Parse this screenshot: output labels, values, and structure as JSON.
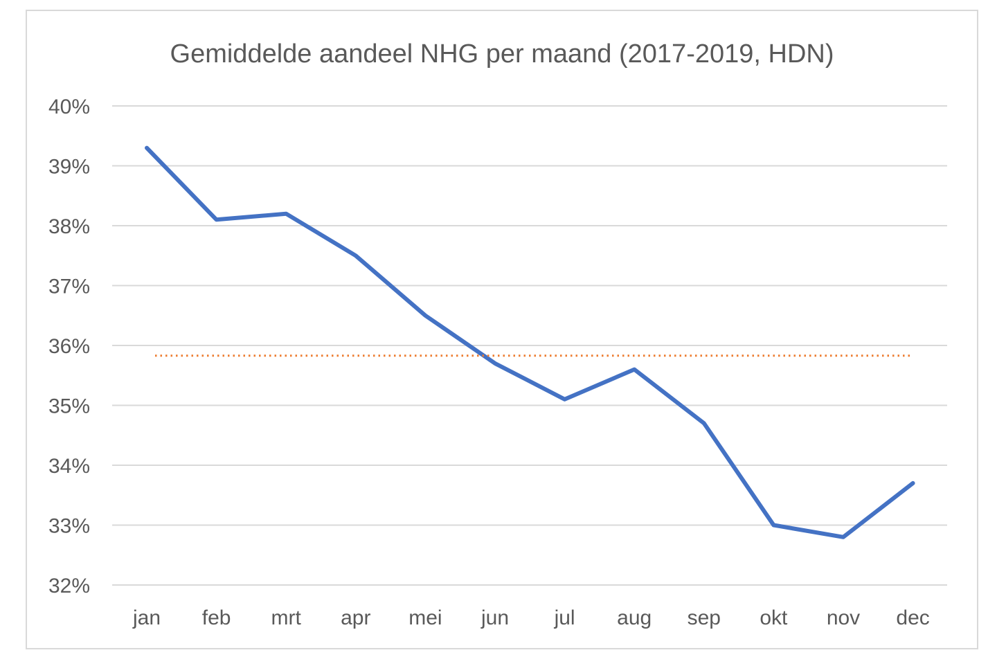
{
  "chart_data": {
    "type": "line",
    "title": "Gemiddelde aandeel NHG per maand (2017-2019, HDN)",
    "xlabel": "",
    "ylabel": "",
    "categories": [
      "jan",
      "feb",
      "mrt",
      "apr",
      "mei",
      "jun",
      "jul",
      "aug",
      "sep",
      "okt",
      "nov",
      "dec"
    ],
    "series": [
      {
        "values": [
          39.3,
          38.1,
          38.2,
          37.5,
          36.5,
          35.7,
          35.1,
          35.6,
          34.7,
          33.0,
          32.8,
          33.7
        ],
        "color": "#4472c4",
        "style": "solid"
      },
      {
        "values": [
          35.83,
          35.83,
          35.83,
          35.83,
          35.83,
          35.83,
          35.83,
          35.83,
          35.83,
          35.83,
          35.83,
          35.83
        ],
        "color": "#ed7d31",
        "style": "dotted"
      }
    ],
    "ylim": [
      32,
      40
    ],
    "yticks": [
      {
        "value": 40,
        "label": "40%"
      },
      {
        "value": 39,
        "label": "39%"
      },
      {
        "value": 38,
        "label": "38%"
      },
      {
        "value": 37,
        "label": "37%"
      },
      {
        "value": 36,
        "label": "36%"
      },
      {
        "value": 35,
        "label": "35%"
      },
      {
        "value": 34,
        "label": "34%"
      },
      {
        "value": 33,
        "label": "33%"
      },
      {
        "value": 32,
        "label": "32%"
      }
    ],
    "grid": true,
    "legend": "none",
    "colors": {
      "gridline": "#d9d9d9",
      "text": "#595959",
      "frame": "#d9d9d9"
    }
  }
}
